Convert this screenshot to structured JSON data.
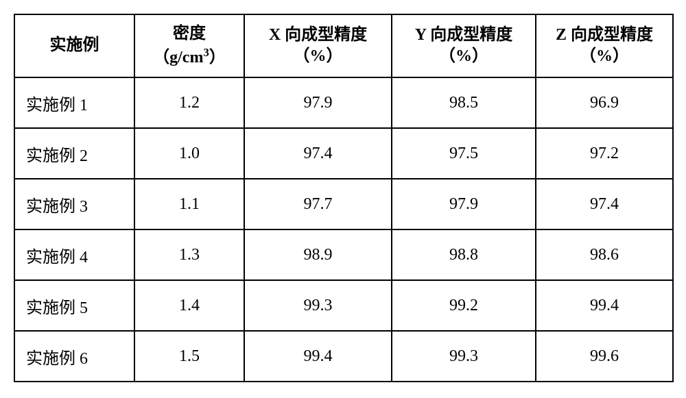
{
  "table": {
    "columns": [
      {
        "label": "实施例"
      },
      {
        "label_line1": "密度",
        "label_line2_pre": "（g/cm",
        "label_line2_sup": "3",
        "label_line2_post": "）"
      },
      {
        "label_line1": "X 向成型精度",
        "label_line2": "（%）"
      },
      {
        "label_line1": "Y 向成型精度",
        "label_line2": "（%）"
      },
      {
        "label_line1": "Z 向成型精度",
        "label_line2": "（%）"
      }
    ],
    "rows": [
      {
        "label": "实施例 1",
        "density": "1.2",
        "x": "97.9",
        "y": "98.5",
        "z": "96.9"
      },
      {
        "label": "实施例 2",
        "density": "1.0",
        "x": "97.4",
        "y": "97.5",
        "z": "97.2"
      },
      {
        "label": "实施例 3",
        "density": "1.1",
        "x": "97.7",
        "y": "97.9",
        "z": "97.4"
      },
      {
        "label": "实施例 4",
        "density": "1.3",
        "x": "98.9",
        "y": "98.8",
        "z": "98.6"
      },
      {
        "label": "实施例 5",
        "density": "1.4",
        "x": "99.3",
        "y": "99.2",
        "z": "99.4"
      },
      {
        "label": "实施例 6",
        "density": "1.5",
        "x": "99.4",
        "y": "99.3",
        "z": "99.6"
      }
    ],
    "border_color": "#000000",
    "background_color": "#ffffff",
    "header_fontsize": 24,
    "cell_fontsize": 24,
    "header_fontweight": "bold"
  }
}
